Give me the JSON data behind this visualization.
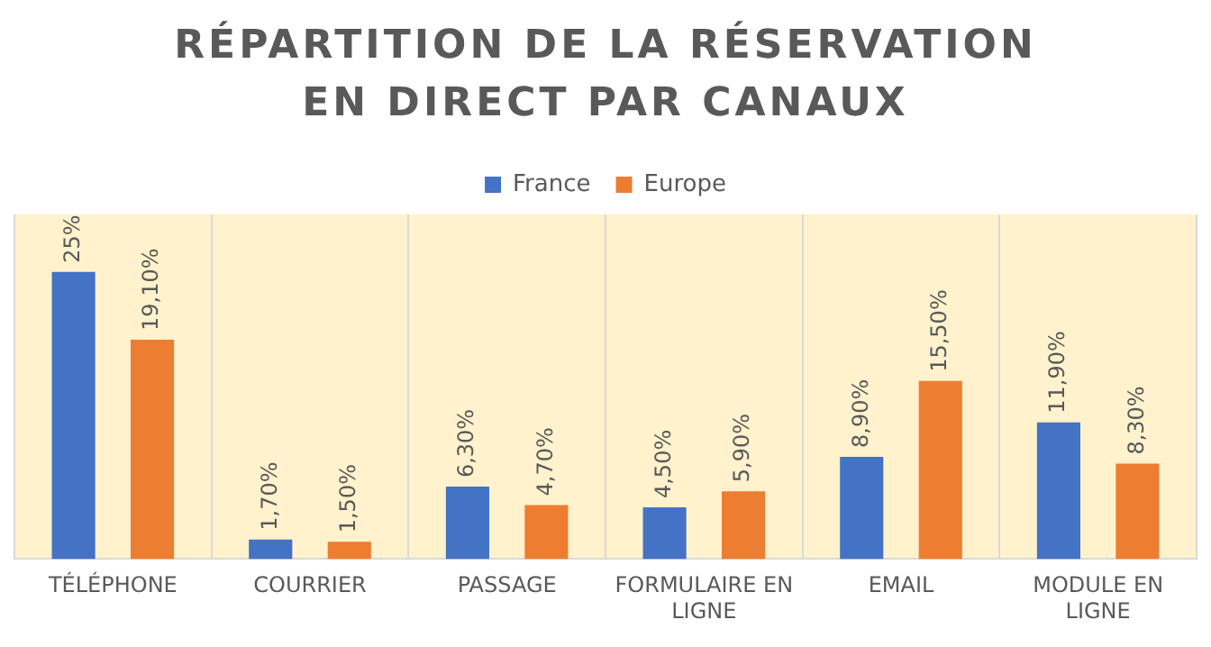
{
  "chart_data": {
    "type": "bar",
    "title": "RÉPARTITION DE LA RÉSERVATION EN DIRECT PAR CANAUX",
    "categories": [
      "TÉLÉPHONE",
      "COURRIER",
      "PASSAGE",
      "FORMULAIRE EN LIGNE",
      "EMAIL",
      "MODULE EN LIGNE"
    ],
    "series": [
      {
        "name": "France",
        "color": "#4472c4",
        "values": [
          25,
          1.7,
          6.3,
          4.5,
          8.9,
          11.9
        ],
        "value_labels": [
          "25%",
          "1,70%",
          "6,30%",
          "4,50%",
          "8,90%",
          "11,90%"
        ]
      },
      {
        "name": "Europe",
        "color": "#ed7d31",
        "values": [
          19.1,
          1.5,
          4.7,
          5.9,
          15.5,
          8.3
        ],
        "value_labels": [
          "19,10%",
          "1,50%",
          "4,70%",
          "5,90%",
          "15,50%",
          "8,30%"
        ]
      }
    ],
    "grid": "x",
    "legend": "top",
    "tick_labels": "x"
  }
}
